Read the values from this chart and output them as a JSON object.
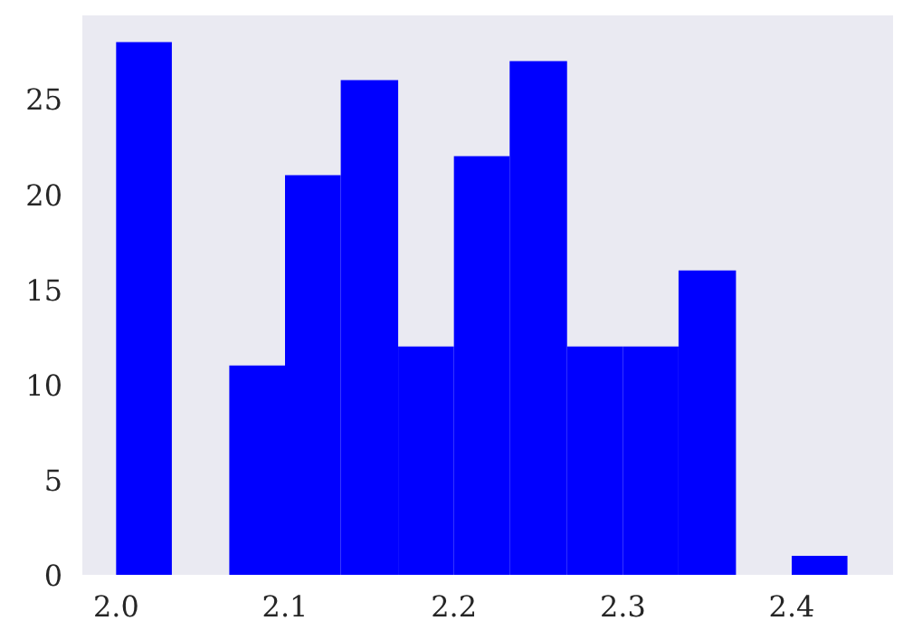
{
  "chart_data": {
    "type": "histogram",
    "bins": [
      2.0,
      2.033,
      2.067,
      2.1,
      2.133,
      2.167,
      2.2,
      2.233,
      2.267,
      2.3,
      2.333,
      2.367,
      2.4,
      2.433
    ],
    "values": [
      28,
      0,
      11,
      21,
      26,
      12,
      22,
      27,
      12,
      12,
      16,
      0,
      1
    ],
    "color": "#0000ff",
    "xlim": [
      1.98,
      2.46
    ],
    "ylim": [
      0,
      29.4
    ],
    "xticks": [
      {
        "value": 2.0,
        "label": "2.0"
      },
      2.1,
      2.2,
      2.3,
      2.4
    ],
    "yticks": [
      0,
      5,
      10,
      15,
      20,
      25
    ],
    "grid": false
  }
}
